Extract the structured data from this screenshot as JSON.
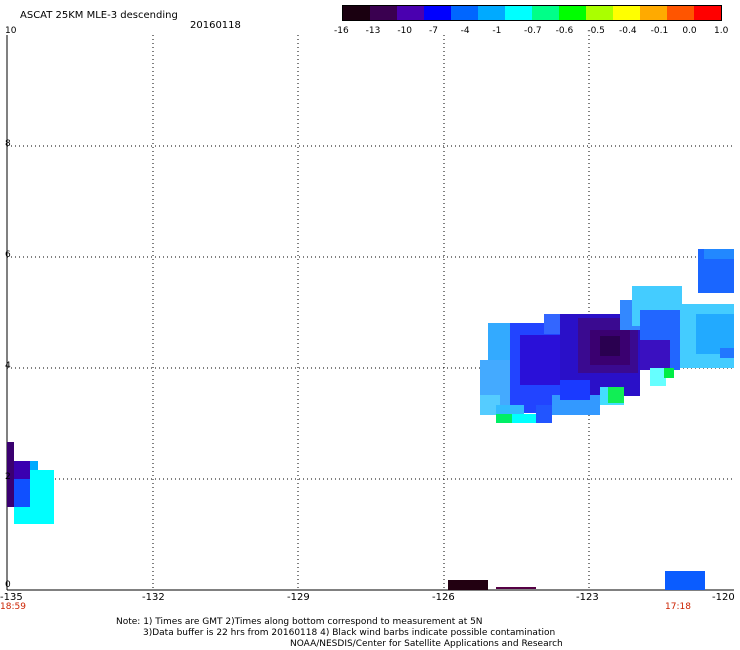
{
  "header": {
    "title": "ASCAT 25KM MLE-3 descending",
    "date": "20160118"
  },
  "colorbar": {
    "labels": [
      "-16",
      "-13",
      "-10",
      "-7",
      "-4",
      "-1",
      "-0.7",
      "-0.6",
      "-0.5",
      "-0.4",
      "-0.1",
      "0.0",
      "1.0"
    ],
    "colors": [
      "#1a0010",
      "#3a0050",
      "#4a00b0",
      "#0000ff",
      "#0066ff",
      "#00aaff",
      "#00ffff",
      "#00ff88",
      "#00ff00",
      "#aaff00",
      "#ffff00",
      "#ffaa00",
      "#ff5500",
      "#ff0000"
    ]
  },
  "axes": {
    "x_ticks": [
      "-135",
      "-132",
      "-129",
      "-126",
      "-123",
      "-120"
    ],
    "y_ticks": [
      "0",
      "2",
      "4",
      "6",
      "8",
      "10"
    ]
  },
  "times": {
    "left": "18:59",
    "right": "17:18"
  },
  "notes": {
    "line1": "Note: 1) Times are GMT 2)Times along bottom correspond to measurement at 5N",
    "line2": "3)Data buffer is 22 hrs from 20160118 4) Black wind barbs indicate possible contamination",
    "line3": "NOAA/NESDIS/Center for Satellite Applications and Research"
  }
}
